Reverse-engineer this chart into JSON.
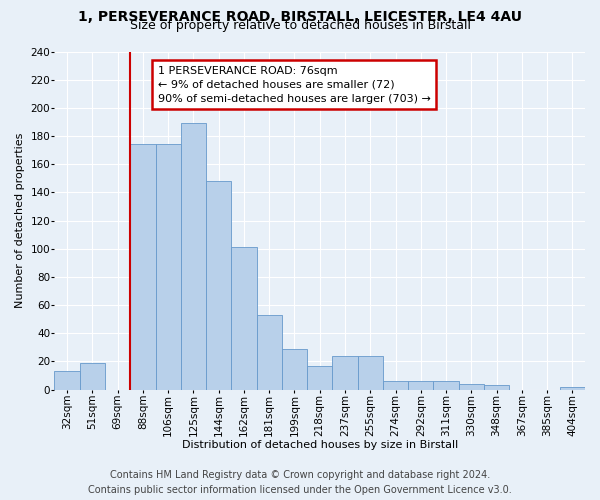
{
  "title_line1": "1, PERSEVERANCE ROAD, BIRSTALL, LEICESTER, LE4 4AU",
  "title_line2": "Size of property relative to detached houses in Birstall",
  "xlabel": "Distribution of detached houses by size in Birstall",
  "ylabel": "Number of detached properties",
  "bar_color": "#b8d0ea",
  "bar_edge_color": "#6699cc",
  "bin_labels": [
    "32sqm",
    "51sqm",
    "69sqm",
    "88sqm",
    "106sqm",
    "125sqm",
    "144sqm",
    "162sqm",
    "181sqm",
    "199sqm",
    "218sqm",
    "237sqm",
    "255sqm",
    "274sqm",
    "292sqm",
    "311sqm",
    "330sqm",
    "348sqm",
    "367sqm",
    "385sqm",
    "404sqm"
  ],
  "bar_values": [
    13,
    19,
    0,
    174,
    174,
    189,
    148,
    101,
    53,
    29,
    17,
    24,
    24,
    6,
    6,
    6,
    4,
    3,
    0,
    0,
    2
  ],
  "ylim": [
    0,
    240
  ],
  "yticks": [
    0,
    20,
    40,
    60,
    80,
    100,
    120,
    140,
    160,
    180,
    200,
    220,
    240
  ],
  "red_line_bin_index": 3,
  "annotation_text": "1 PERSEVERANCE ROAD: 76sqm\n← 9% of detached houses are smaller (72)\n90% of semi-detached houses are larger (703) →",
  "annotation_box_facecolor": "#ffffff",
  "annotation_box_edgecolor": "#cc0000",
  "footer_line1": "Contains HM Land Registry data © Crown copyright and database right 2024.",
  "footer_line2": "Contains public sector information licensed under the Open Government Licence v3.0.",
  "background_color": "#e8f0f8",
  "plot_bg_color": "#e8f0f8",
  "grid_color": "#ffffff",
  "title1_fontsize": 10,
  "title2_fontsize": 9,
  "xlabel_fontsize": 8,
  "ylabel_fontsize": 8,
  "tick_fontsize": 7.5,
  "annotation_fontsize": 8,
  "footer_fontsize": 7
}
